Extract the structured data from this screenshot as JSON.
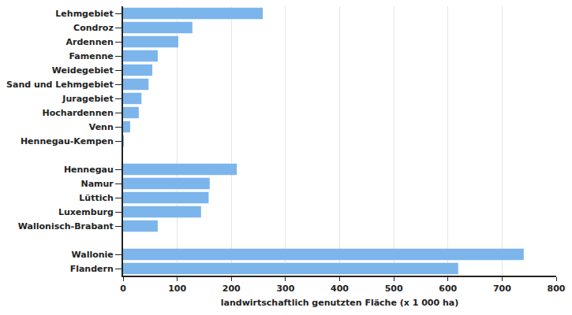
{
  "chart_data": {
    "type": "bar",
    "orientation": "horizontal",
    "x_label": "landwirtschaftlich genutzten Fläche (x 1 000 ha)",
    "categories": [
      "Lehmgebiet",
      "Condroz",
      "Ardennen",
      "Famenne",
      "Weidegebiet",
      "Sand und Lehmgebiet",
      "Juragebiet",
      "Hochardennen",
      "Venn",
      "Hennegau-Kempen",
      null,
      "Hennegau",
      "Namur",
      "Lüttich",
      "Luxemburg",
      "Wallonisch-Brabant",
      null,
      "Wallonie",
      "Flandern"
    ],
    "values": [
      258,
      128,
      102,
      64,
      54,
      47,
      34,
      29,
      13,
      1,
      null,
      210,
      160,
      158,
      144,
      64,
      null,
      740,
      619
    ],
    "color": "#7cb5ec",
    "xlim": [
      0,
      800
    ],
    "xticks": [
      0,
      100,
      200,
      300,
      400,
      500,
      600,
      700,
      800
    ],
    "grid": true
  }
}
